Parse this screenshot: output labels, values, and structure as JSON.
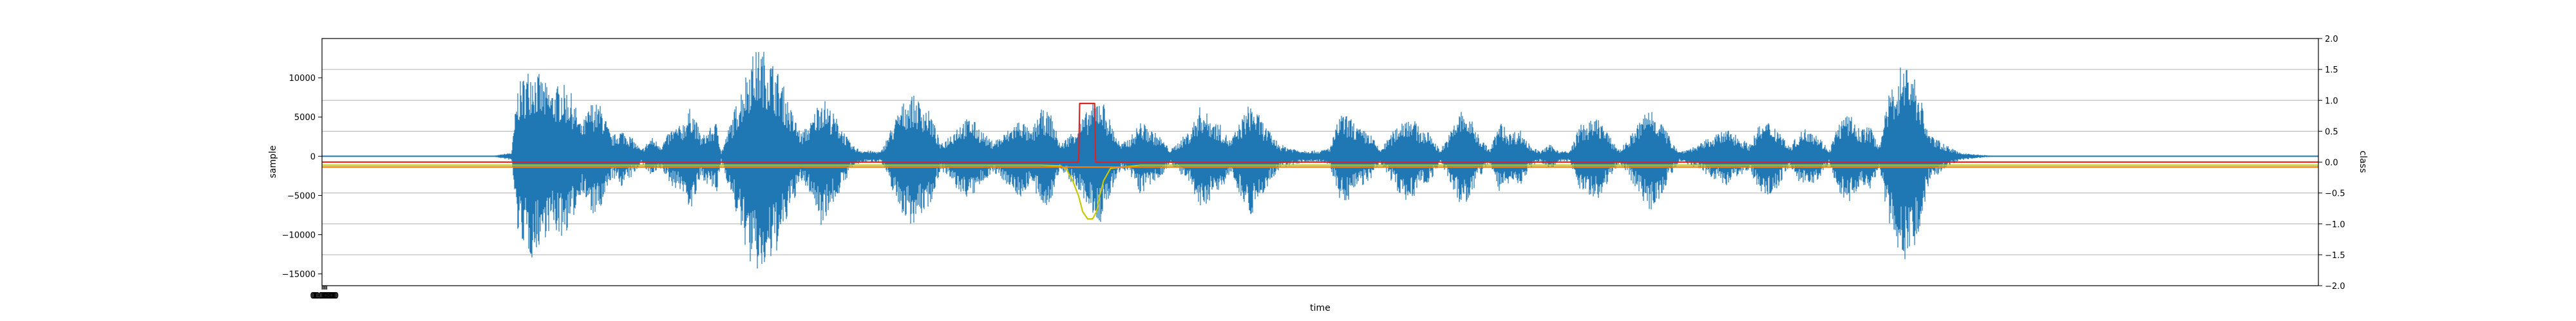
{
  "chart_data": {
    "type": "line",
    "xlabel": "time",
    "ylabel": "sample",
    "ylabel_right": "class",
    "ylim": [
      -16500,
      15000
    ],
    "ylim_right": [
      -2.0,
      2.0
    ],
    "yticks": [
      -15000,
      -10000,
      -5000,
      0,
      5000,
      10000
    ],
    "ytick_labels": [
      "−15000",
      "−10000",
      "−5000",
      "0",
      "5000",
      "10000"
    ],
    "yticks_right": [
      -2.0,
      -1.5,
      -1.0,
      -0.5,
      0.0,
      0.5,
      1.0,
      1.5,
      2.0
    ],
    "ytick_labels_right": [
      "−2.0",
      "−1.5",
      "−1.0",
      "−0.5",
      "0.0",
      "0.5",
      "1.0",
      "1.5",
      "2.0"
    ],
    "grid": true,
    "xlim": [
      0,
      1
    ],
    "waveform": {
      "color": "#1f77b4",
      "envelope": [
        [
          0.0,
          0
        ],
        [
          0.085,
          0
        ],
        [
          0.09,
          250
        ],
        [
          0.095,
          500
        ],
        [
          0.098,
          9000
        ],
        [
          0.105,
          12000
        ],
        [
          0.11,
          10000
        ],
        [
          0.115,
          8500
        ],
        [
          0.12,
          9500
        ],
        [
          0.125,
          8000
        ],
        [
          0.13,
          4000
        ],
        [
          0.135,
          7000
        ],
        [
          0.14,
          6500
        ],
        [
          0.145,
          2500
        ],
        [
          0.15,
          3500
        ],
        [
          0.155,
          2500
        ],
        [
          0.16,
          800
        ],
        [
          0.165,
          2500
        ],
        [
          0.17,
          1500
        ],
        [
          0.175,
          3500
        ],
        [
          0.18,
          4000
        ],
        [
          0.185,
          6500
        ],
        [
          0.19,
          2500
        ],
        [
          0.198,
          4500
        ],
        [
          0.2,
          500
        ],
        [
          0.215,
          13000
        ],
        [
          0.22,
          14000
        ],
        [
          0.225,
          12500
        ],
        [
          0.23,
          10000
        ],
        [
          0.235,
          6000
        ],
        [
          0.24,
          3000
        ],
        [
          0.245,
          4500
        ],
        [
          0.25,
          8000
        ],
        [
          0.255,
          6000
        ],
        [
          0.26,
          4000
        ],
        [
          0.265,
          1500
        ],
        [
          0.27,
          800
        ],
        [
          0.28,
          600
        ],
        [
          0.29,
          6500
        ],
        [
          0.295,
          8000
        ],
        [
          0.3,
          7000
        ],
        [
          0.305,
          5500
        ],
        [
          0.31,
          1500
        ],
        [
          0.32,
          4500
        ],
        [
          0.325,
          5000
        ],
        [
          0.33,
          3500
        ],
        [
          0.335,
          2000
        ],
        [
          0.34,
          2500
        ],
        [
          0.35,
          5000
        ],
        [
          0.355,
          3000
        ],
        [
          0.36,
          6000
        ],
        [
          0.365,
          5500
        ],
        [
          0.37,
          1500
        ],
        [
          0.38,
          4500
        ],
        [
          0.385,
          6500
        ],
        [
          0.39,
          8000
        ],
        [
          0.395,
          4500
        ],
        [
          0.4,
          1500
        ],
        [
          0.405,
          2500
        ],
        [
          0.41,
          4500
        ],
        [
          0.415,
          3500
        ],
        [
          0.42,
          2500
        ],
        [
          0.425,
          800
        ],
        [
          0.435,
          3500
        ],
        [
          0.44,
          6500
        ],
        [
          0.445,
          5000
        ],
        [
          0.45,
          4000
        ],
        [
          0.455,
          2000
        ],
        [
          0.46,
          4500
        ],
        [
          0.465,
          7000
        ],
        [
          0.47,
          5000
        ],
        [
          0.475,
          3000
        ],
        [
          0.48,
          1500
        ],
        [
          0.49,
          800
        ],
        [
          0.5,
          700
        ],
        [
          0.505,
          1200
        ],
        [
          0.51,
          5500
        ],
        [
          0.515,
          5000
        ],
        [
          0.52,
          3500
        ],
        [
          0.525,
          3000
        ],
        [
          0.53,
          800
        ],
        [
          0.54,
          4500
        ],
        [
          0.545,
          5500
        ],
        [
          0.55,
          3500
        ],
        [
          0.555,
          3000
        ],
        [
          0.56,
          800
        ],
        [
          0.565,
          3000
        ],
        [
          0.57,
          6000
        ],
        [
          0.575,
          5000
        ],
        [
          0.58,
          2500
        ],
        [
          0.585,
          800
        ],
        [
          0.59,
          4500
        ],
        [
          0.595,
          3000
        ],
        [
          0.6,
          3500
        ],
        [
          0.605,
          1500
        ],
        [
          0.61,
          600
        ],
        [
          0.615,
          1500
        ],
        [
          0.62,
          700
        ],
        [
          0.625,
          600
        ],
        [
          0.63,
          4000
        ],
        [
          0.635,
          4500
        ],
        [
          0.64,
          5000
        ],
        [
          0.645,
          2500
        ],
        [
          0.65,
          800
        ],
        [
          0.655,
          2500
        ],
        [
          0.66,
          4500
        ],
        [
          0.665,
          6500
        ],
        [
          0.67,
          5000
        ],
        [
          0.675,
          2500
        ],
        [
          0.68,
          600
        ],
        [
          0.69,
          1500
        ],
        [
          0.695,
          2500
        ],
        [
          0.7,
          3000
        ],
        [
          0.705,
          3500
        ],
        [
          0.71,
          2500
        ],
        [
          0.715,
          1500
        ],
        [
          0.72,
          4000
        ],
        [
          0.725,
          4500
        ],
        [
          0.73,
          3500
        ],
        [
          0.735,
          1200
        ],
        [
          0.74,
          3000
        ],
        [
          0.745,
          4000
        ],
        [
          0.75,
          2500
        ],
        [
          0.755,
          800
        ],
        [
          0.76,
          4500
        ],
        [
          0.765,
          5500
        ],
        [
          0.77,
          3500
        ],
        [
          0.775,
          4000
        ],
        [
          0.78,
          1500
        ],
        [
          0.785,
          8000
        ],
        [
          0.79,
          11500
        ],
        [
          0.795,
          12500
        ],
        [
          0.8,
          8500
        ],
        [
          0.805,
          3000
        ],
        [
          0.81,
          2000
        ],
        [
          0.815,
          1200
        ],
        [
          0.82,
          500
        ],
        [
          0.83,
          200
        ],
        [
          0.84,
          0
        ],
        [
          1.0,
          0
        ]
      ],
      "negative_scale": 1.1
    },
    "series": [
      {
        "name": "",
        "color": "#d62728",
        "x": [
          0.0,
          0.376,
          0.378,
          0.379,
          0.3795,
          0.387,
          0.3875,
          0.389,
          0.391,
          1.0
        ],
        "y": [
          0.0,
          0.0,
          0.0,
          0.0,
          0.95,
          0.95,
          0.0,
          0.0,
          0.0,
          0.0
        ]
      },
      {
        "name": "",
        "color": "#c8c800",
        "x": [
          0.0,
          0.36,
          0.37,
          0.373,
          0.376,
          0.379,
          0.381,
          0.3835,
          0.386,
          0.388,
          0.3895,
          0.3915,
          0.395,
          0.41,
          1.0
        ],
        "y": [
          -0.05,
          -0.05,
          -0.06,
          -0.12,
          -0.3,
          -0.55,
          -0.8,
          -0.92,
          -0.92,
          -0.8,
          -0.55,
          -0.3,
          -0.1,
          -0.05,
          -0.05
        ]
      },
      {
        "name": "",
        "color": "#ff7f0e",
        "x": [
          0.0,
          1.0
        ],
        "y": [
          -0.08,
          -0.08
        ]
      }
    ],
    "x_tick_labels": [
      "0.000",
      "0.000",
      "0.000",
      "0.000",
      "0.000",
      "0.000"
    ]
  }
}
